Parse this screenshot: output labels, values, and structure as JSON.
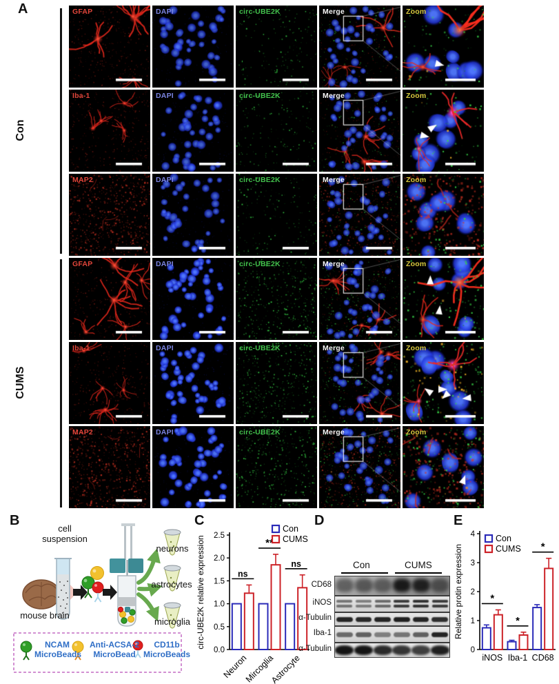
{
  "panel_a": {
    "label": "A",
    "group_labels": [
      "Con",
      "CUMS"
    ],
    "channel_labels": {
      "dapi": "DAPI",
      "circ": "circ-UBE2K",
      "merge": "Merge",
      "zoom": "Zoom"
    },
    "label_colors": {
      "marker": "#e0453a",
      "dapi": "#7b84e0",
      "circ": "#43c24d",
      "merge": "#f5f5f5",
      "zoom": "#d9c93f"
    },
    "rows": [
      {
        "group": "Con",
        "marker": "GFAP",
        "green_density": "low",
        "zoom_arrowheads": 1,
        "coloc_dots": 2
      },
      {
        "group": "Con",
        "marker": "Iba-1",
        "green_density": "low",
        "zoom_arrowheads": 2,
        "coloc_dots": 4
      },
      {
        "group": "Con",
        "marker": "MAP2",
        "green_density": "low",
        "zoom_arrowheads": 0,
        "coloc_dots": 0
      },
      {
        "group": "CUMS",
        "marker": "GFAP",
        "green_density": "high",
        "zoom_arrowheads": 2,
        "coloc_dots": 4
      },
      {
        "group": "CUMS",
        "marker": "Iba-1",
        "green_density": "high",
        "zoom_arrowheads": 4,
        "coloc_dots": 36
      },
      {
        "group": "CUMS",
        "marker": "MAP2",
        "green_density": "high",
        "zoom_arrowheads": 1,
        "coloc_dots": 3
      }
    ]
  },
  "panel_b": {
    "label": "B",
    "labels": {
      "cell_suspension": "cell suspension",
      "mouse_brain": "mouse brain",
      "outputs": [
        "neurons",
        "astrocytes",
        "microglia"
      ]
    },
    "legend": [
      {
        "line1": "NCAM",
        "line2": "MicroBeads",
        "color": "#2f9e27"
      },
      {
        "line1": "Anti-ACSA-2",
        "line2": "MicroBead",
        "color": "#f2c12e"
      },
      {
        "line1": "CD11b",
        "line2": "MicroBeads",
        "color": "#e01f1f"
      }
    ],
    "legend_text_color": "#2f6ec6"
  },
  "panel_c": {
    "label": "C"
  },
  "panel_d": {
    "label": "D",
    "lane_groups": [
      "Con",
      "CUMS"
    ],
    "blots": [
      {
        "name": "CD68",
        "style": "smear",
        "lanes": [
          0.5,
          0.55,
          0.5,
          0.95,
          0.9,
          0.55
        ]
      },
      {
        "name": "iNOS",
        "style": "doublet",
        "lanes": [
          0.55,
          0.5,
          0.6,
          0.85,
          0.9,
          0.85
        ]
      },
      {
        "name": "α-Tubulin",
        "style": "band",
        "lanes": [
          0.9,
          0.88,
          0.9,
          0.92,
          0.9,
          0.85
        ]
      },
      {
        "name": "Iba-1",
        "style": "band",
        "lanes": [
          0.55,
          0.6,
          0.45,
          0.5,
          0.6,
          0.9
        ]
      },
      {
        "name": "α-Tubulin",
        "style": "blob",
        "lanes": [
          0.95,
          0.95,
          0.85,
          0.8,
          0.75,
          0.9
        ]
      }
    ]
  },
  "panel_e": {
    "label": "E"
  },
  "chart_data": [
    {
      "type": "bar",
      "panel": "C",
      "categories": [
        "Neuron",
        "Mircoglia",
        "Astrocyte"
      ],
      "series": [
        {
          "name": "Con",
          "color": "#2a2ab8",
          "values": [
            1.0,
            1.0,
            1.0
          ],
          "errors": [
            0,
            0,
            0
          ]
        },
        {
          "name": "CUMS",
          "color": "#cc2127",
          "values": [
            1.23,
            1.85,
            1.35
          ],
          "errors": [
            0.18,
            0.23,
            0.28
          ]
        }
      ],
      "significance": [
        "ns",
        "**",
        "ns"
      ],
      "title": "",
      "xlabel": "",
      "ylabel": "circ-UBE2K relative expression",
      "ylim": [
        0,
        2.5
      ],
      "yticks": [
        0,
        0.5,
        1,
        1.5,
        2,
        2.5
      ],
      "ytick_format": "1dp",
      "legend_position": "top-right",
      "grid": false
    },
    {
      "type": "bar",
      "panel": "E",
      "categories": [
        "iNOS",
        "Iba-1",
        "CD68"
      ],
      "series": [
        {
          "name": "Con",
          "color": "#2a2ab8",
          "values": [
            0.75,
            0.27,
            1.45
          ],
          "errors": [
            0.1,
            0.05,
            0.1
          ]
        },
        {
          "name": "CUMS",
          "color": "#cc2127",
          "values": [
            1.2,
            0.5,
            2.8
          ],
          "errors": [
            0.17,
            0.1,
            0.35
          ]
        }
      ],
      "significance": [
        "*",
        "*",
        "*"
      ],
      "title": "",
      "xlabel": "",
      "ylabel": "Relative protin expression",
      "ylim": [
        0,
        4
      ],
      "yticks": [
        0,
        1,
        2,
        3,
        4
      ],
      "ytick_format": "int",
      "legend_position": "top-left",
      "grid": false
    }
  ]
}
